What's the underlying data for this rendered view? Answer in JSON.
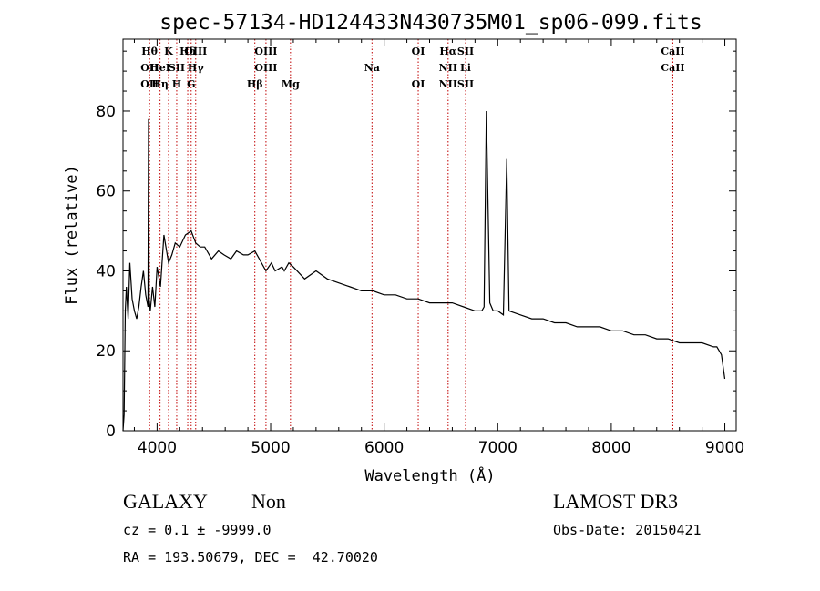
{
  "chart_data": {
    "type": "line",
    "title": "spec-57134-HD124433N430735M01_sp06-099.fits",
    "xlabel": "Wavelength (Å)",
    "ylabel": "Flux (relative)",
    "xlim": [
      3700,
      9100
    ],
    "ylim": [
      0,
      98
    ],
    "xticks": [
      4000,
      5000,
      6000,
      7000,
      8000,
      9000
    ],
    "yticks": [
      0,
      20,
      40,
      60,
      80
    ],
    "xtick_labels": [
      "4000",
      "5000",
      "6000",
      "7000",
      "8000",
      "9000"
    ],
    "ytick_labels": [
      "0",
      "20",
      "40",
      "60",
      "80"
    ],
    "grid": false,
    "series": [
      {
        "x": [
          3700,
          3710,
          3720,
          3730,
          3745,
          3760,
          3780,
          3800,
          3820,
          3840,
          3860,
          3880,
          3900,
          3920,
          3925,
          3930,
          3940,
          3960,
          3980,
          4000,
          4030,
          4060,
          4101,
          4130,
          4160,
          4200,
          4250,
          4300,
          4340,
          4380,
          4420,
          4480,
          4540,
          4590,
          4650,
          4700,
          4761,
          4800,
          4861,
          4900,
          4959,
          5007,
          5040,
          5100,
          5120,
          5160,
          5200,
          5300,
          5400,
          5500,
          5600,
          5700,
          5800,
          5900,
          6000,
          6100,
          6200,
          6300,
          6400,
          6500,
          6563,
          6600,
          6700,
          6800,
          6860,
          6880,
          6900,
          6930,
          6960,
          7000,
          7050,
          7080,
          7100,
          7200,
          7300,
          7400,
          7500,
          7600,
          7700,
          7800,
          7900,
          8000,
          8100,
          8200,
          8300,
          8400,
          8500,
          8600,
          8700,
          8800,
          8900,
          8930,
          8950,
          8970,
          9000
        ],
        "y": [
          0,
          4,
          30,
          36,
          28,
          42,
          33,
          30,
          28,
          31,
          36,
          40,
          34,
          31,
          78,
          33,
          30,
          36,
          31,
          41,
          36,
          49,
          42,
          44,
          47,
          46,
          49,
          50,
          47,
          46,
          46,
          43,
          45,
          44,
          43,
          45,
          44,
          44,
          45,
          43,
          40,
          42,
          40,
          41,
          40,
          42,
          41,
          38,
          40,
          38,
          37,
          36,
          35,
          35,
          34,
          34,
          33,
          33,
          32,
          32,
          32,
          32,
          31,
          30,
          30,
          31,
          80,
          32,
          30,
          30,
          29,
          68,
          30,
          29,
          28,
          28,
          27,
          27,
          26,
          26,
          26,
          25,
          25,
          24,
          24,
          23,
          23,
          22,
          22,
          22,
          21,
          21,
          20,
          19,
          13
        ]
      }
    ],
    "lines": [
      {
        "x": 3934,
        "labels": [
          "Hθ",
          "OII",
          "OII"
        ]
      },
      {
        "x": 4026,
        "labels": [
          "",
          "HeI",
          "Hη"
        ]
      },
      {
        "x": 4101,
        "labels": [
          "K",
          "",
          ""
        ]
      },
      {
        "x": 4173,
        "labels": [
          "",
          "SII",
          "H"
        ]
      },
      {
        "x": 4270,
        "labels": [
          "Hδ",
          "",
          ""
        ]
      },
      {
        "x": 4300,
        "labels": [
          "",
          "",
          "G"
        ]
      },
      {
        "x": 4340,
        "labels": [
          "OIII",
          "Hγ",
          ""
        ]
      },
      {
        "x": 4861,
        "labels": [
          "",
          "",
          "Hβ"
        ]
      },
      {
        "x": 4959,
        "labels": [
          "OIII",
          "OIII",
          ""
        ]
      },
      {
        "x": 5175,
        "labels": [
          "",
          "",
          "Mg"
        ]
      },
      {
        "x": 5893,
        "labels": [
          "",
          "Na",
          ""
        ]
      },
      {
        "x": 6300,
        "labels": [
          "OI",
          "",
          "OI"
        ]
      },
      {
        "x": 6563,
        "labels": [
          "Hα",
          "NII",
          "NII"
        ]
      },
      {
        "x": 6717,
        "labels": [
          "SII",
          "Li",
          "SII"
        ]
      },
      {
        "x": 8542,
        "labels": [
          "CaII",
          "CaII",
          ""
        ]
      }
    ]
  },
  "info": {
    "object_class": "GALAXY",
    "subclass": "Non",
    "cz": "cz = 0.1 ± -9999.0",
    "radec": "RA = 193.50679, DEC =  42.70020",
    "survey": "LAMOST DR3",
    "obs_date": "Obs-Date: 20150421"
  },
  "colors": {
    "axis": "#000000",
    "spectrum": "#000000",
    "lines": "#c00000"
  }
}
